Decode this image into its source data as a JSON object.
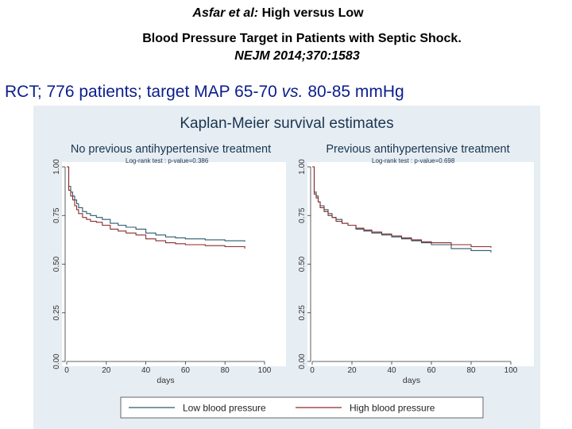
{
  "header": {
    "authors": "Asfar et al:",
    "title_line1": "High versus Low",
    "title_line2": "Blood Pressure Target in Patients with Septic Shock.",
    "citation": "NEJM 2014;370:1583"
  },
  "subtitle": {
    "prefix": "RCT; 776 patients; target MAP 65-70",
    "vs": "vs.",
    "suffix": "80-85 mmHg"
  },
  "chart_data": {
    "type": "line",
    "title": "Kaplan-Meier survival estimates",
    "xlabel": "days",
    "ylabel": "",
    "xlim": [
      0,
      100
    ],
    "ylim": [
      0,
      1
    ],
    "x_ticks": [
      0,
      20,
      40,
      60,
      80,
      100
    ],
    "y_ticks": [
      "0.00",
      "0.25",
      "0.50",
      "0.75",
      "1.00"
    ],
    "grid": false,
    "legend_position": "bottom",
    "colors": {
      "low": "#2c5a6e",
      "high": "#8b2b2b"
    },
    "legend": [
      "Low blood pressure",
      "High blood pressure"
    ],
    "panels": [
      {
        "title": "No previous antihypertensive treatment",
        "logrank": "Log-rank test : p-value=0.386",
        "series": [
          {
            "name": "Low blood pressure",
            "x": [
              0,
              1,
              2,
              3,
              4,
              5,
              6,
              8,
              10,
              12,
              15,
              18,
              22,
              26,
              30,
              35,
              40,
              45,
              50,
              55,
              60,
              70,
              80,
              90
            ],
            "y": [
              1.0,
              0.9,
              0.87,
              0.85,
              0.83,
              0.81,
              0.79,
              0.77,
              0.76,
              0.75,
              0.74,
              0.73,
              0.71,
              0.7,
              0.69,
              0.68,
              0.66,
              0.65,
              0.64,
              0.635,
              0.63,
              0.625,
              0.62,
              0.615
            ]
          },
          {
            "name": "High blood pressure",
            "x": [
              0,
              1,
              2,
              3,
              4,
              5,
              6,
              8,
              10,
              12,
              15,
              18,
              22,
              26,
              30,
              35,
              40,
              45,
              50,
              55,
              60,
              70,
              80,
              90
            ],
            "y": [
              1.0,
              0.88,
              0.85,
              0.83,
              0.8,
              0.78,
              0.76,
              0.74,
              0.73,
              0.72,
              0.715,
              0.7,
              0.68,
              0.67,
              0.66,
              0.65,
              0.63,
              0.62,
              0.61,
              0.605,
              0.6,
              0.595,
              0.59,
              0.58
            ]
          }
        ]
      },
      {
        "title": "Previous antihypertensive treatment",
        "logrank": "Log-rank test : p-value=0.698",
        "series": [
          {
            "name": "Low blood pressure",
            "x": [
              0,
              1,
              2,
              3,
              4,
              6,
              8,
              10,
              12,
              15,
              18,
              22,
              26,
              30,
              35,
              40,
              45,
              50,
              55,
              60,
              70,
              80,
              90
            ],
            "y": [
              1.0,
              0.87,
              0.85,
              0.82,
              0.8,
              0.78,
              0.76,
              0.74,
              0.73,
              0.71,
              0.7,
              0.68,
              0.67,
              0.66,
              0.65,
              0.64,
              0.63,
              0.62,
              0.61,
              0.6,
              0.58,
              0.57,
              0.56
            ]
          },
          {
            "name": "High blood pressure",
            "x": [
              0,
              1,
              2,
              3,
              4,
              6,
              8,
              10,
              12,
              15,
              18,
              22,
              26,
              30,
              35,
              40,
              45,
              50,
              55,
              60,
              70,
              80,
              90
            ],
            "y": [
              1.0,
              0.86,
              0.84,
              0.82,
              0.79,
              0.77,
              0.75,
              0.74,
              0.72,
              0.71,
              0.7,
              0.685,
              0.675,
              0.665,
              0.655,
              0.645,
              0.635,
              0.625,
              0.615,
              0.61,
              0.6,
              0.59,
              0.585
            ]
          }
        ]
      }
    ]
  }
}
